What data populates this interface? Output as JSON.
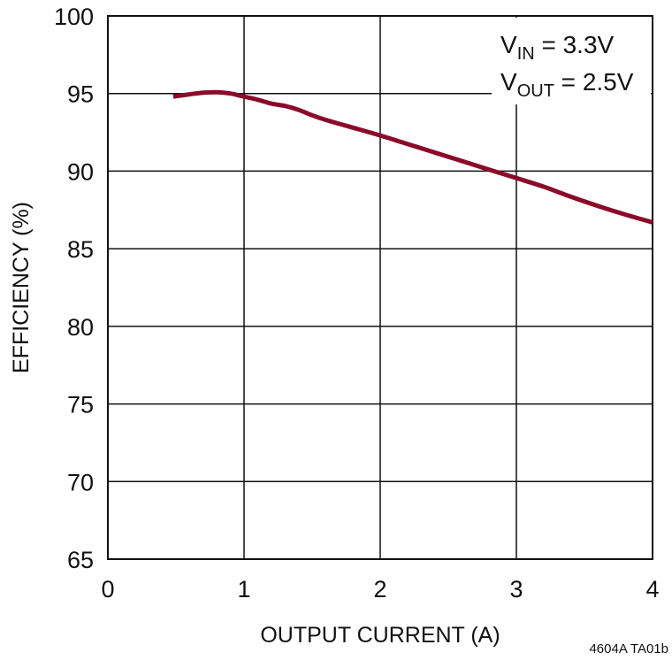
{
  "chart_data": {
    "type": "line",
    "xlabel": "OUTPUT CURRENT (A)",
    "ylabel": "EFFICIENCY (%)",
    "xlim": [
      0,
      4
    ],
    "ylim": [
      65,
      100
    ],
    "xticks": [
      "0",
      "1",
      "2",
      "3",
      "4"
    ],
    "yticks": [
      "100",
      "95",
      "90",
      "85",
      "80",
      "75",
      "70",
      "65"
    ],
    "grid": true,
    "annotation": {
      "line1_main": "V",
      "line1_sub": "IN",
      "line1_rest": " = 3.3V",
      "line2_main": "V",
      "line2_sub": "OUT",
      "line2_rest": " = 2.5V"
    },
    "series": [
      {
        "color": "#8b0a2a",
        "x": [
          0.48,
          0.6,
          0.7,
          0.8,
          0.9,
          1.0,
          1.1,
          1.2,
          1.3,
          1.4,
          1.5,
          1.6,
          1.8,
          2.0,
          2.2,
          2.4,
          2.6,
          2.8,
          3.0,
          3.2,
          3.4,
          3.6,
          3.8,
          4.0
        ],
        "y": [
          94.8,
          94.95,
          95.05,
          95.08,
          95.0,
          94.8,
          94.6,
          94.35,
          94.2,
          93.95,
          93.6,
          93.3,
          92.8,
          92.3,
          91.75,
          91.2,
          90.65,
          90.1,
          89.55,
          89.0,
          88.35,
          87.75,
          87.2,
          86.7
        ]
      }
    ]
  },
  "figure_id": "4604A TA01b"
}
